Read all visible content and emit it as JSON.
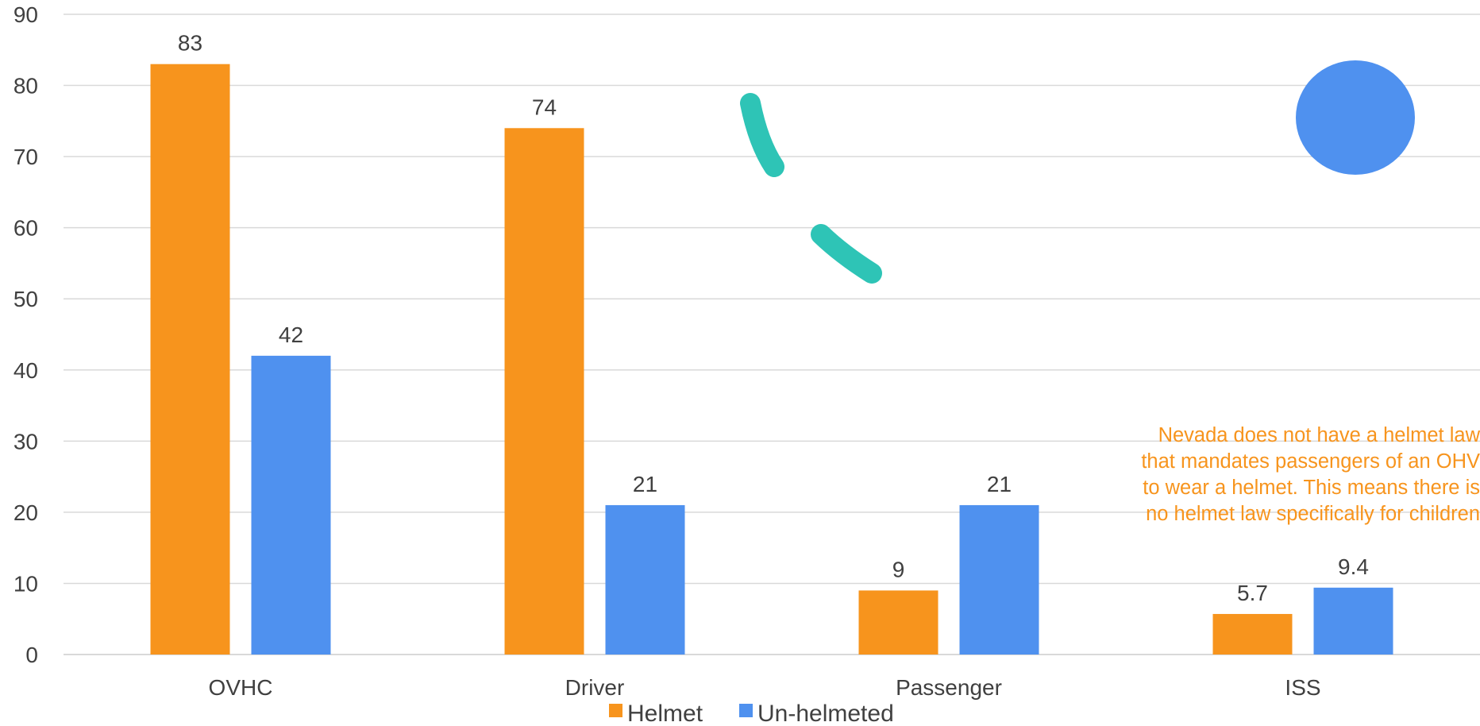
{
  "chart_data": {
    "type": "bar",
    "categories": [
      "OVHC",
      "Driver",
      "Passenger",
      "ISS"
    ],
    "series": [
      {
        "name": "Helmet",
        "values": [
          83,
          74,
          9,
          5.7
        ],
        "labels": [
          "83",
          "74",
          "9",
          "5.7"
        ],
        "color": "#f7941d"
      },
      {
        "name": "Un-helmeted",
        "values": [
          42,
          21,
          21,
          9.4
        ],
        "labels": [
          "42",
          "21",
          "21",
          "9.4"
        ],
        "color": "#4f91ef"
      }
    ],
    "ylim": [
      0,
      90
    ],
    "yticks": [
      0,
      10,
      20,
      30,
      40,
      50,
      60,
      70,
      80,
      90
    ],
    "grid": true,
    "legend": "bottom",
    "title": "",
    "xlabel": "",
    "ylabel": ""
  },
  "annotation": {
    "lines": [
      "Nevada does not have a helmet law",
      "that mandates passengers of an OHV",
      "to wear a helmet. This means there is",
      "no helmet law specifically for children"
    ],
    "color": "#f7941d"
  },
  "decorations": {
    "stroke_color": "#2ec4b6",
    "circle_color": "#4f91ef"
  }
}
